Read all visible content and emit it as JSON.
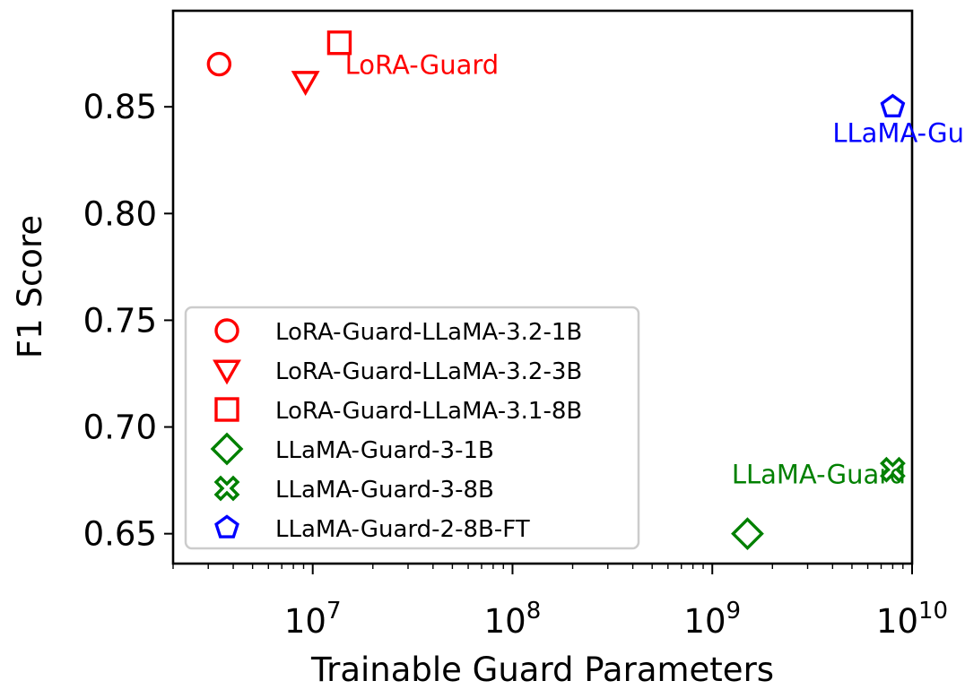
{
  "chart_data": {
    "type": "scatter",
    "xscale": "log",
    "xlabel": "Trainable Guard Parameters",
    "ylabel": "F1 Score",
    "xlim": [
      2000000,
      10000000000
    ],
    "ylim": [
      0.636,
      0.895
    ],
    "yticks": [
      {
        "value": 0.65,
        "label": "0.65"
      },
      {
        "value": 0.7,
        "label": "0.70"
      },
      {
        "value": 0.75,
        "label": "0.75"
      },
      {
        "value": 0.8,
        "label": "0.80"
      },
      {
        "value": 0.85,
        "label": "0.85"
      }
    ],
    "xticks": [
      {
        "value": 10000000,
        "base": "10",
        "exp": "7"
      },
      {
        "value": 100000000,
        "base": "10",
        "exp": "8"
      },
      {
        "value": 1000000000,
        "base": "10",
        "exp": "9"
      },
      {
        "value": 10000000000,
        "base": "10",
        "exp": "10"
      }
    ],
    "series": [
      {
        "name": "LoRA-Guard-LLaMA-3.2-1B",
        "marker": "circle",
        "color": "#ff0000",
        "x": 3400000,
        "y": 0.87
      },
      {
        "name": "LoRA-Guard-LLaMA-3.2-3B",
        "marker": "triangle-down",
        "color": "#ff0000",
        "x": 9200000,
        "y": 0.862
      },
      {
        "name": "LoRA-Guard-LLaMA-3.1-8B",
        "marker": "square",
        "color": "#ff0000",
        "x": 13600000,
        "y": 0.88
      },
      {
        "name": "LLaMA-Guard-3-1B",
        "marker": "diamond",
        "color": "#008000",
        "x": 1500000000,
        "y": 0.65
      },
      {
        "name": "LLaMA-Guard-3-8B",
        "marker": "x-filled",
        "color": "#008000",
        "x": 8000000000,
        "y": 0.68
      },
      {
        "name": "LLaMA-Guard-2-8B-FT",
        "marker": "pentagon",
        "color": "#0000ff",
        "x": 8000000000,
        "y": 0.85
      }
    ],
    "annotations": [
      {
        "text": "LoRA-Guard",
        "color": "#ff0000",
        "x": 14500000,
        "y": 0.8655
      },
      {
        "text": "LLaMA-Guard-FT",
        "color": "#0000ff",
        "x": 4000000000,
        "y": 0.8335
      },
      {
        "text": "LLaMA-Guard",
        "color": "#008000",
        "x": 1250000000,
        "y": 0.6735
      }
    ],
    "legend": {
      "placement": "lower-left"
    }
  }
}
